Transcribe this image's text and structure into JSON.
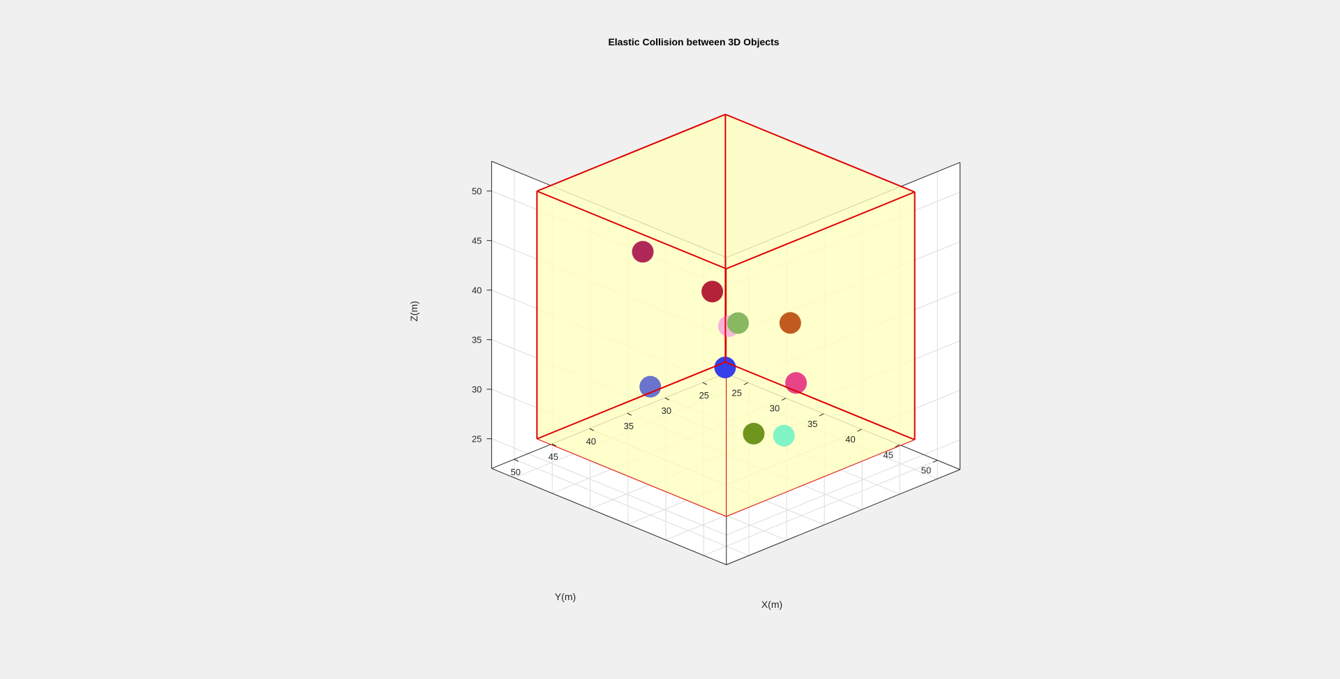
{
  "colors": {
    "figure_bg": "#f0f0f0",
    "axes_bg": "#ffffff",
    "axis_line": "#262626",
    "grid": "#dcdcdc",
    "tick_label": "#262626",
    "cube_face": "#ffffc0",
    "cube_edge": "#dd0000"
  },
  "chart_data": {
    "type": "scatter3d",
    "title": "Elastic Collision between 3D Objects",
    "xlabel": "X(m)",
    "ylabel": "Y(m)",
    "zlabel": "Z(m)",
    "xlim": [
      22,
      53
    ],
    "ylim": [
      22,
      53
    ],
    "zlim": [
      22,
      53
    ],
    "xticks": [
      25,
      30,
      35,
      40,
      45,
      50
    ],
    "yticks": [
      25,
      30,
      35,
      40,
      45,
      50
    ],
    "zticks": [
      25,
      30,
      35,
      40,
      45,
      50
    ],
    "grid": true,
    "box": {
      "min": [
        25,
        25,
        25
      ],
      "max": [
        50,
        50,
        50
      ],
      "face_color": "#ffffc0",
      "edge_color": "#dd0000"
    },
    "series": [
      {
        "x": 47.6,
        "y": 39.1,
        "z": 40.4,
        "color": "#c05a1e"
      },
      {
        "x": 42.1,
        "y": 40.5,
        "z": 39.1,
        "color": "#88b860"
      },
      {
        "x": 33.6,
        "y": 44.6,
        "z": 44.9,
        "color": "#b02858"
      },
      {
        "x": 38.2,
        "y": 40.0,
        "z": 40.9,
        "color": "#b42238"
      },
      {
        "x": 38.3,
        "y": 37.9,
        "z": 36.8,
        "color": "#f6b6d8"
      },
      {
        "x": 39.9,
        "y": 30.6,
        "z": 29.3,
        "color": "#e84488"
      },
      {
        "x": 39.3,
        "y": 39.4,
        "z": 33.4,
        "color": "#3640e8"
      },
      {
        "x": 39.3,
        "y": 31.6,
        "z": 24.1,
        "color": "#80f4c4"
      },
      {
        "x": 32.2,
        "y": 42.2,
        "z": 30.1,
        "color": "#6a74cc"
      },
      {
        "x": 37.3,
        "y": 33.6,
        "z": 24.3,
        "color": "#6e961c"
      }
    ]
  }
}
